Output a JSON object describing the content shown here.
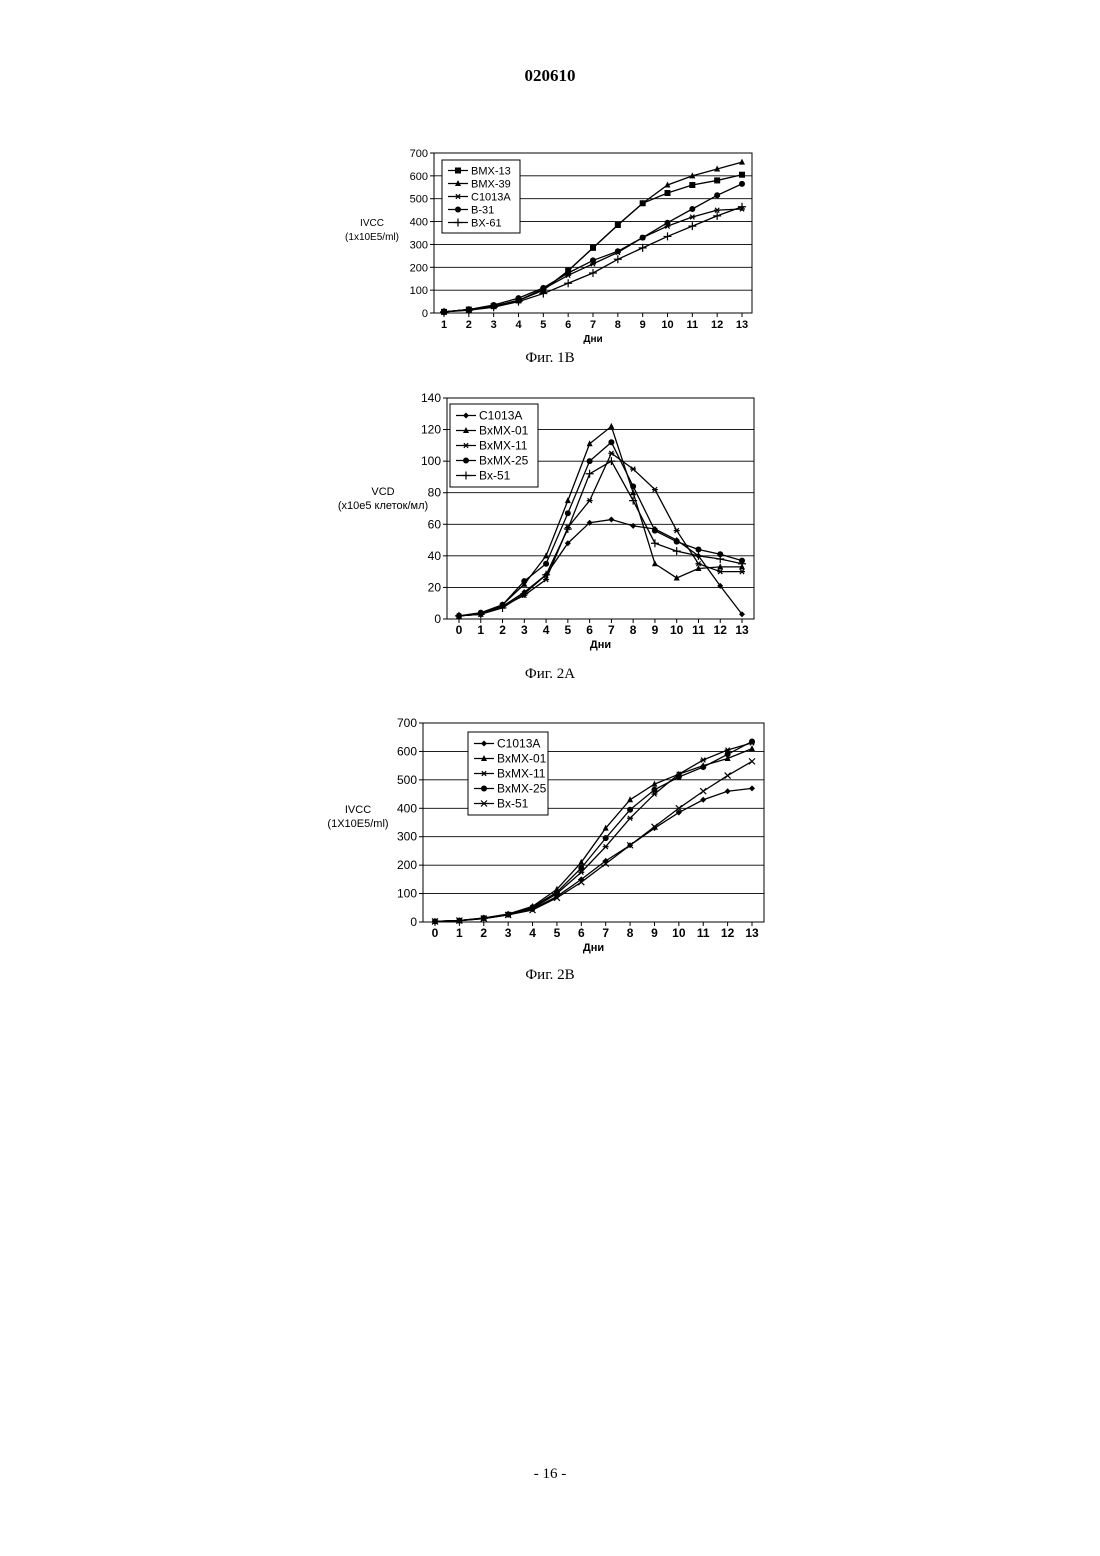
{
  "header": {
    "doc_number": "020610"
  },
  "footer": {
    "page_number": "- 16 -"
  },
  "figures": [
    {
      "caption": "Фиг. 1B",
      "chart_data": {
        "type": "line",
        "xlabel": "Дни",
        "ylabel": [
          "IVCC",
          "(1x10E5/ml)"
        ],
        "x": [
          1,
          2,
          3,
          4,
          5,
          6,
          7,
          8,
          9,
          10,
          11,
          12,
          13
        ],
        "ylim": [
          0,
          700
        ],
        "yticks": [
          0,
          100,
          200,
          300,
          400,
          500,
          600,
          700
        ],
        "grid": true,
        "legend_position": "top-left",
        "series": [
          {
            "name": "BMX-13",
            "marker": "square",
            "values": [
              5,
              15,
              30,
              55,
              100,
              185,
              285,
              385,
              480,
              525,
              560,
              580,
              605
            ]
          },
          {
            "name": "BMX-39",
            "marker": "triangle",
            "values": [
              5,
              15,
              30,
              55,
              100,
              185,
              285,
              385,
              480,
              560,
              600,
              630,
              660
            ]
          },
          {
            "name": "C1013A",
            "marker": "asterisk",
            "values": [
              5,
              15,
              30,
              55,
              105,
              165,
              215,
              265,
              330,
              380,
              420,
              450,
              455
            ]
          },
          {
            "name": "B-31",
            "marker": "circle",
            "values": [
              5,
              15,
              35,
              65,
              110,
              175,
              230,
              270,
              330,
              395,
              455,
              515,
              565
            ]
          },
          {
            "name": "BX-61",
            "marker": "plus",
            "values": [
              5,
              12,
              25,
              50,
              85,
              130,
              175,
              235,
              285,
              335,
              380,
              425,
              465
            ]
          }
        ]
      }
    },
    {
      "caption": "Фиг. 2A",
      "chart_data": {
        "type": "line",
        "xlabel": "Дни",
        "ylabel": [
          "VCD",
          "(x10e5 клеток/мл)"
        ],
        "x": [
          0,
          1,
          2,
          3,
          4,
          5,
          6,
          7,
          8,
          9,
          10,
          11,
          12,
          13
        ],
        "ylim": [
          0,
          140
        ],
        "yticks": [
          0,
          20,
          40,
          60,
          80,
          100,
          120,
          140
        ],
        "grid": true,
        "legend_position": "top-left",
        "series": [
          {
            "name": "C1013A",
            "marker": "diamond",
            "values": [
              2,
              3,
              8,
              17,
              28,
              48,
              61,
              63,
              59,
              57,
              50,
              40,
              21,
              3
            ]
          },
          {
            "name": "BxMX-01",
            "marker": "triangle",
            "values": [
              2,
              3,
              9,
              22,
              40,
              75,
              111,
              122,
              80,
              35,
              26,
              32,
              33,
              33
            ]
          },
          {
            "name": "BxMX-11",
            "marker": "asterisk",
            "values": [
              2,
              3,
              8,
              15,
              25,
              58,
              75,
              105,
              95,
              82,
              56,
              35,
              30,
              30
            ]
          },
          {
            "name": "BxMX-25",
            "marker": "circle",
            "values": [
              2,
              4,
              9,
              24,
              35,
              67,
              100,
              112,
              84,
              56,
              49,
              44,
              41,
              37
            ]
          },
          {
            "name": "Bx-51",
            "marker": "plus",
            "values": [
              2,
              3,
              7,
              16,
              28,
              57,
              92,
              100,
              75,
              48,
              43,
              40,
              38,
              35
            ]
          }
        ]
      }
    },
    {
      "caption": "Фиг. 2B",
      "chart_data": {
        "type": "line",
        "xlabel": "Дни",
        "ylabel": [
          "IVCC",
          "(1X10E5/ml)"
        ],
        "x": [
          0,
          1,
          2,
          3,
          4,
          5,
          6,
          7,
          8,
          9,
          10,
          11,
          12,
          13
        ],
        "ylim": [
          0,
          700
        ],
        "yticks": [
          0,
          100,
          200,
          300,
          400,
          500,
          600,
          700
        ],
        "grid": true,
        "legend_position": "top-left",
        "series": [
          {
            "name": "C1013A",
            "marker": "diamond",
            "values": [
              2,
              5,
              12,
              25,
              45,
              90,
              150,
              215,
              270,
              330,
              385,
              430,
              460,
              470
            ]
          },
          {
            "name": "BxMX-01",
            "marker": "triangle",
            "values": [
              2,
              5,
              14,
              28,
              55,
              115,
              210,
              330,
              430,
              485,
              520,
              550,
              575,
              610
            ]
          },
          {
            "name": "BxMX-11",
            "marker": "asterisk",
            "values": [
              2,
              5,
              13,
              25,
              48,
              100,
              175,
              265,
              365,
              450,
              520,
              570,
              605,
              630
            ]
          },
          {
            "name": "BxMX-25",
            "marker": "circle",
            "values": [
              2,
              5,
              14,
              27,
              52,
              105,
              190,
              295,
              395,
              465,
              510,
              545,
              590,
              635
            ]
          },
          {
            "name": "Bx-51",
            "marker": "x",
            "values": [
              2,
              5,
              12,
              25,
              42,
              85,
              140,
              205,
              270,
              335,
              400,
              460,
              515,
              565
            ]
          }
        ]
      }
    }
  ]
}
